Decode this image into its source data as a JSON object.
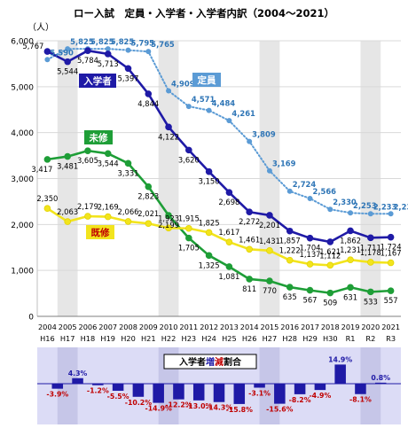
{
  "chart_data": {
    "type": "line",
    "title": "ロー入試　定員・入学者・入学者内訳（2004〜2021）",
    "y_unit": "（人）",
    "ylim": [
      0,
      6000
    ],
    "yticks": [
      "0",
      "1,000",
      "2,000",
      "3,000",
      "4,000",
      "5,000",
      "6,000"
    ],
    "ytick_values": [
      0,
      1000,
      2000,
      3000,
      4000,
      5000,
      6000
    ],
    "x_years": [
      "2004",
      "2005",
      "2006",
      "2007",
      "2008",
      "2009",
      "2010",
      "2011",
      "2012",
      "2013",
      "2014",
      "2015",
      "2016",
      "2017",
      "2018",
      "2019",
      "2020",
      "2021"
    ],
    "x_era": [
      "H16",
      "H17",
      "H18",
      "H19",
      "H20",
      "H21",
      "H22",
      "H23",
      "H24",
      "H25",
      "H26",
      "H27",
      "H28",
      "H29",
      "H30",
      "R1",
      "R2",
      "R3"
    ],
    "shaded_categories": [
      "H17",
      "H22",
      "H27",
      "R2"
    ],
    "series": [
      {
        "name": "定員",
        "color": "#5b9bd5",
        "style": "dotted",
        "values": [
          5590,
          5825,
          5825,
          5825,
          5795,
          5765,
          4909,
          4571,
          4484,
          4261,
          3809,
          3169,
          2724,
          2566,
          2330,
          2253,
          2233,
          2233
        ],
        "labels": [
          "5,590",
          "5,825",
          "5,825",
          "5,825",
          "5,795",
          "5,765",
          "4,909",
          "4,571",
          "4,484",
          "4,261",
          "3,809",
          "3,169",
          "2,724",
          "2,566",
          "2,330",
          "2,253",
          "2,233",
          "2,233"
        ]
      },
      {
        "name": "入学者",
        "color": "#1f1aa6",
        "style": "solid",
        "values": [
          5767,
          5544,
          5784,
          5713,
          5397,
          4844,
          4122,
          3620,
          3150,
          2698,
          2272,
          2201,
          1857,
          1704,
          1621,
          1862,
          1711,
          1724
        ],
        "labels": [
          "5,767",
          "5,544",
          "5,784",
          "5,713",
          "5,397",
          "4,844",
          "4,122",
          "3,620",
          "3,150",
          "2,698",
          "2,272",
          "2,201",
          "1,857",
          "1,704",
          "1,621",
          "1,862",
          "1,711",
          "1,724"
        ]
      },
      {
        "name": "未修",
        "color": "#1e9e37",
        "style": "solid",
        "values": [
          3417,
          3481,
          3605,
          3544,
          3331,
          2823,
          2199,
          1705,
          1325,
          1081,
          811,
          770,
          635,
          567,
          509,
          631,
          533,
          557
        ],
        "labels": [
          "3,417",
          "3,481",
          "3,605",
          "3,544",
          "3,331",
          "2,823",
          "2,199",
          "1,705",
          "1,325",
          "1,081",
          "811",
          "770",
          "635",
          "567",
          "509",
          "631",
          "533",
          "557"
        ]
      },
      {
        "name": "既修",
        "color": "#f2e41d",
        "style": "solid",
        "values": [
          2350,
          2063,
          2179,
          2169,
          2066,
          2021,
          1923,
          1915,
          1825,
          1617,
          1461,
          1431,
          1222,
          1137,
          1112,
          1231,
          1178,
          1167
        ],
        "labels": [
          "2,350",
          "2,063",
          "2,179",
          "2,169",
          "2,066",
          "2,021",
          "1,923",
          "1,915",
          "1,825",
          "1,617",
          "1,461",
          "1,431",
          "1,222",
          "1,137",
          "1,112",
          "1,231",
          "1,178",
          "1,167"
        ]
      }
    ],
    "legend_boxes": [
      {
        "text": "入学者",
        "color": "#1f1aa6",
        "text_color": "#ffffff"
      },
      {
        "text": "定員",
        "color": "#5b9bd5",
        "text_color": "#ffffff"
      },
      {
        "text": "未修",
        "color": "#1e9e37",
        "text_color": "#ffffff"
      },
      {
        "text": "既修",
        "color": "#f2e41d",
        "text_color": "#c00000"
      }
    ],
    "rate_panel": {
      "type": "bar",
      "title_parts": [
        "入学者",
        "増",
        "減",
        "割合"
      ],
      "title_colors": [
        "#000000",
        "#1f1aa6",
        "#c00000",
        "#000000"
      ],
      "bar_color": "#1f1aa6",
      "label_color_negative": "#c00000",
      "label_color_positive": "#1f1aa6",
      "values": [
        -3.9,
        4.3,
        -1.2,
        -5.5,
        -10.2,
        -14.9,
        -12.2,
        -13.0,
        -14.3,
        -15.8,
        -3.1,
        -15.6,
        -8.2,
        -4.9,
        14.9,
        -8.1,
        0.8
      ],
      "labels": [
        "-3.9%",
        "4.3%",
        "-1.2%",
        "-5.5%",
        "-10.2%",
        "-14.9%",
        "-12.2%",
        "-13.0%",
        "-14.3%",
        "-15.8%",
        "-3.1%",
        "-15.6%",
        "-8.2%",
        "-4.9%",
        "14.9%",
        "-8.1%",
        "0.8%"
      ]
    }
  }
}
